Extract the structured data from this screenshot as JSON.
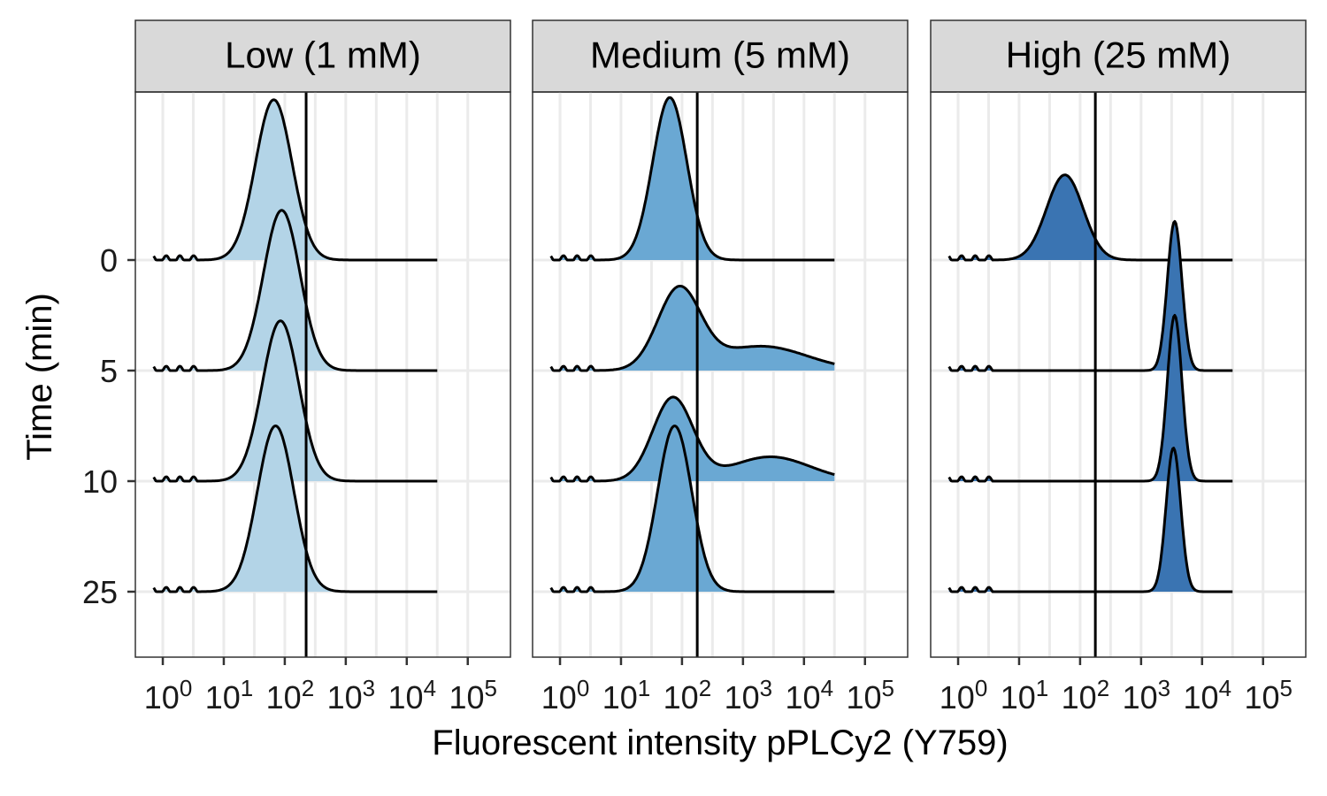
{
  "chart_data": {
    "type": "ridgeline",
    "xlabel": "Fluorescent intensity pPLCy2 (Y759)",
    "ylabel": "Time (min)",
    "x_scale": "log10",
    "x_ticks": [
      {
        "base": "10",
        "exp": "0"
      },
      {
        "base": "10",
        "exp": "1"
      },
      {
        "base": "10",
        "exp": "2"
      },
      {
        "base": "10",
        "exp": "3"
      },
      {
        "base": "10",
        "exp": "4"
      },
      {
        "base": "10",
        "exp": "5"
      }
    ],
    "y_categories": [
      "0",
      "5",
      "10",
      "25"
    ],
    "panels": [
      {
        "label": "Low (1 mM)",
        "fill_color": "#b3d4e7",
        "threshold_log10": 2.35,
        "series": [
          {
            "time": "0",
            "peaks": [
              {
                "center_log10": 1.82,
                "sigma": 0.3,
                "height": 1.45
              }
            ]
          },
          {
            "time": "5",
            "peaks": [
              {
                "center_log10": 1.95,
                "sigma": 0.3,
                "height": 1.45
              }
            ]
          },
          {
            "time": "10",
            "peaks": [
              {
                "center_log10": 1.93,
                "sigma": 0.3,
                "height": 1.45
              }
            ]
          },
          {
            "time": "25",
            "peaks": [
              {
                "center_log10": 1.85,
                "sigma": 0.3,
                "height": 1.5
              }
            ]
          }
        ]
      },
      {
        "label": "Medium (5 mM)",
        "fill_color": "#6aa8d3",
        "threshold_log10": 2.25,
        "series": [
          {
            "time": "0",
            "peaks": [
              {
                "center_log10": 1.8,
                "sigma": 0.28,
                "height": 1.47
              }
            ]
          },
          {
            "time": "5",
            "peaks": [
              {
                "center_log10": 1.95,
                "sigma": 0.35,
                "height": 0.72
              },
              {
                "center_log10": 3.3,
                "sigma": 0.75,
                "height": 0.22
              }
            ]
          },
          {
            "time": "10",
            "peaks": [
              {
                "center_log10": 1.85,
                "sigma": 0.33,
                "height": 0.75
              },
              {
                "center_log10": 3.45,
                "sigma": 0.65,
                "height": 0.22
              }
            ]
          },
          {
            "time": "25",
            "peaks": [
              {
                "center_log10": 1.88,
                "sigma": 0.28,
                "height": 1.5
              }
            ]
          }
        ]
      },
      {
        "label": "High (25 mM)",
        "fill_color": "#3a74b2",
        "threshold_log10": 2.25,
        "series": [
          {
            "time": "0",
            "peaks": [
              {
                "center_log10": 1.75,
                "sigma": 0.3,
                "height": 0.77
              }
            ]
          },
          {
            "time": "5",
            "peaks": [
              {
                "center_log10": 3.55,
                "sigma": 0.12,
                "height": 1.35
              }
            ]
          },
          {
            "time": "10",
            "peaks": [
              {
                "center_log10": 3.55,
                "sigma": 0.12,
                "height": 1.5
              }
            ]
          },
          {
            "time": "25",
            "peaks": [
              {
                "center_log10": 3.53,
                "sigma": 0.12,
                "height": 1.3
              }
            ]
          }
        ]
      }
    ]
  }
}
